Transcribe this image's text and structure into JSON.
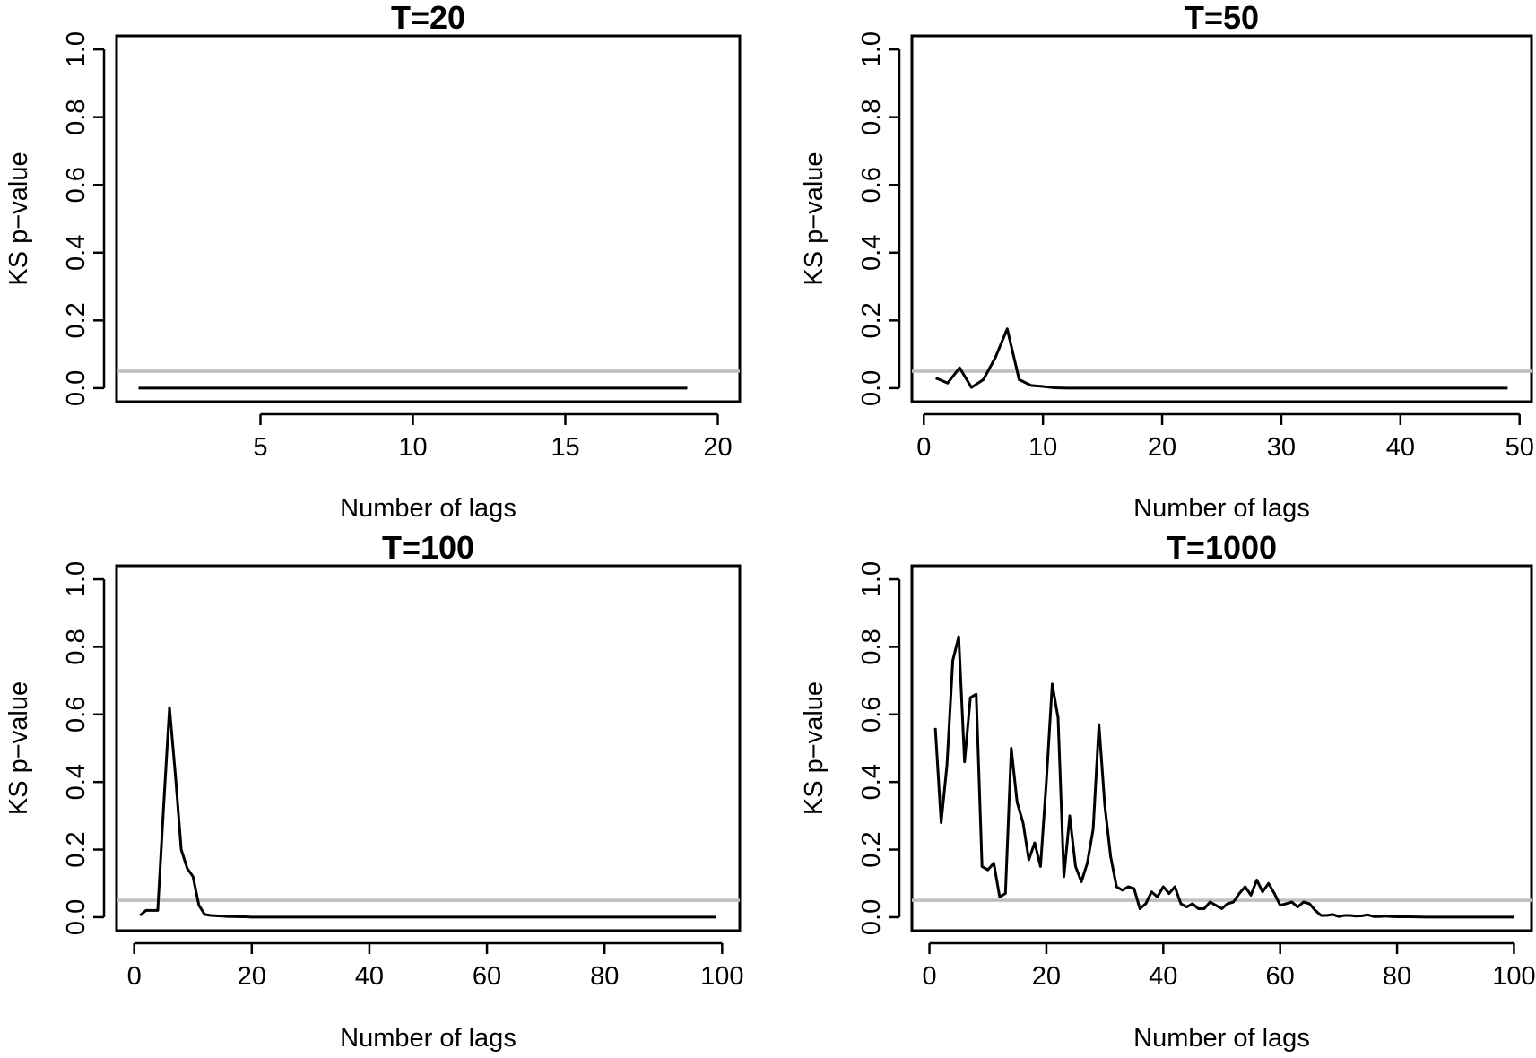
{
  "colors": {
    "series": "#000000",
    "reference_line": "#bebebe",
    "frame": "#000000"
  },
  "chart_data": [
    {
      "type": "line",
      "title": "T=20",
      "xlabel": "Number of lags",
      "ylabel": "KS p−value",
      "xlim": [
        0.28,
        20.72
      ],
      "ylim": [
        -0.04,
        1.04
      ],
      "xticks": [
        5,
        10,
        15,
        20
      ],
      "yticks": [
        0.0,
        0.2,
        0.4,
        0.6,
        0.8,
        1.0
      ],
      "ytick_labels": [
        "0.0",
        "0.2",
        "0.4",
        "0.6",
        "0.8",
        "1.0"
      ],
      "reference_line_y": 0.05,
      "grid": false,
      "x": [
        1,
        2,
        3,
        4,
        5,
        6,
        7,
        8,
        9,
        10,
        11,
        12,
        13,
        14,
        15,
        16,
        17,
        18,
        19
      ],
      "values": [
        0,
        0,
        0,
        0,
        0,
        0,
        0,
        0,
        0,
        0,
        0,
        0,
        0,
        0,
        0,
        0,
        0,
        0,
        0
      ]
    },
    {
      "type": "line",
      "title": "T=50",
      "xlabel": "Number of lags",
      "ylabel": "KS p−value",
      "xlim": [
        -1,
        51
      ],
      "ylim": [
        -0.04,
        1.04
      ],
      "xticks": [
        0,
        10,
        20,
        30,
        40,
        50
      ],
      "yticks": [
        0.0,
        0.2,
        0.4,
        0.6,
        0.8,
        1.0
      ],
      "ytick_labels": [
        "0.0",
        "0.2",
        "0.4",
        "0.6",
        "0.8",
        "1.0"
      ],
      "reference_line_y": 0.05,
      "grid": false,
      "x": [
        1,
        2,
        3,
        4,
        5,
        6,
        7,
        8,
        9,
        10,
        11,
        12,
        13,
        14,
        15,
        16,
        17,
        18,
        19,
        20,
        21,
        22,
        23,
        24,
        25,
        26,
        27,
        28,
        29,
        30,
        31,
        32,
        33,
        34,
        35,
        36,
        37,
        38,
        39,
        40,
        41,
        42,
        43,
        44,
        45,
        46,
        47,
        48,
        49
      ],
      "values": [
        0.03,
        0.015,
        0.06,
        0.002,
        0.025,
        0.09,
        0.175,
        0.025,
        0.008,
        0.005,
        0.001,
        0,
        0,
        0,
        0,
        0,
        0,
        0,
        0,
        0,
        0,
        0,
        0,
        0,
        0,
        0,
        0,
        0,
        0,
        0,
        0,
        0,
        0,
        0,
        0,
        0,
        0,
        0,
        0,
        0,
        0,
        0,
        0,
        0,
        0,
        0,
        0,
        0,
        0
      ]
    },
    {
      "type": "line",
      "title": "T=100",
      "xlabel": "Number of lags",
      "ylabel": "KS p−value",
      "xlim": [
        -3,
        103
      ],
      "ylim": [
        -0.04,
        1.04
      ],
      "xticks": [
        0,
        20,
        40,
        60,
        80,
        100
      ],
      "yticks": [
        0.0,
        0.2,
        0.4,
        0.6,
        0.8,
        1.0
      ],
      "ytick_labels": [
        "0.0",
        "0.2",
        "0.4",
        "0.6",
        "0.8",
        "1.0"
      ],
      "reference_line_y": 0.05,
      "grid": false,
      "x": [
        1,
        2,
        3,
        4,
        5,
        6,
        7,
        8,
        9,
        10,
        11,
        12,
        13,
        14,
        15,
        16,
        17,
        18,
        19,
        20,
        30,
        40,
        50,
        60,
        70,
        80,
        90,
        99
      ],
      "values": [
        0.005,
        0.02,
        0.02,
        0.02,
        0.33,
        0.62,
        0.42,
        0.2,
        0.145,
        0.12,
        0.035,
        0.008,
        0.005,
        0.004,
        0.003,
        0.002,
        0.002,
        0.001,
        0.001,
        0,
        0,
        0,
        0,
        0,
        0,
        0,
        0,
        0
      ]
    },
    {
      "type": "line",
      "title": "T=1000",
      "xlabel": "Number of lags",
      "ylabel": "KS p−value",
      "xlim": [
        -3,
        103
      ],
      "ylim": [
        -0.04,
        1.04
      ],
      "xticks": [
        0,
        20,
        40,
        60,
        80,
        100
      ],
      "yticks": [
        0.0,
        0.2,
        0.4,
        0.6,
        0.8,
        1.0
      ],
      "ytick_labels": [
        "0.0",
        "0.2",
        "0.4",
        "0.6",
        "0.8",
        "1.0"
      ],
      "reference_line_y": 0.05,
      "grid": false,
      "x": [
        1,
        2,
        3,
        4,
        5,
        6,
        7,
        8,
        9,
        10,
        11,
        12,
        13,
        14,
        15,
        16,
        17,
        18,
        19,
        20,
        21,
        22,
        23,
        24,
        25,
        26,
        27,
        28,
        29,
        30,
        31,
        32,
        33,
        34,
        35,
        36,
        37,
        38,
        39,
        40,
        41,
        42,
        43,
        44,
        45,
        46,
        47,
        48,
        49,
        50,
        51,
        52,
        53,
        54,
        55,
        56,
        57,
        58,
        59,
        60,
        61,
        62,
        63,
        64,
        65,
        66,
        67,
        68,
        69,
        70,
        71,
        72,
        73,
        74,
        75,
        76,
        77,
        78,
        79,
        80,
        82,
        85,
        90,
        95,
        100
      ],
      "values": [
        0.56,
        0.28,
        0.45,
        0.76,
        0.83,
        0.46,
        0.65,
        0.66,
        0.15,
        0.14,
        0.16,
        0.06,
        0.07,
        0.5,
        0.34,
        0.28,
        0.17,
        0.22,
        0.15,
        0.4,
        0.69,
        0.59,
        0.12,
        0.3,
        0.15,
        0.105,
        0.16,
        0.26,
        0.57,
        0.33,
        0.18,
        0.09,
        0.08,
        0.09,
        0.085,
        0.025,
        0.04,
        0.075,
        0.06,
        0.09,
        0.07,
        0.09,
        0.04,
        0.03,
        0.04,
        0.025,
        0.025,
        0.045,
        0.035,
        0.025,
        0.04,
        0.045,
        0.07,
        0.09,
        0.065,
        0.11,
        0.075,
        0.1,
        0.07,
        0.035,
        0.04,
        0.045,
        0.03,
        0.045,
        0.04,
        0.02,
        0.005,
        0.005,
        0.008,
        0.002,
        0.005,
        0.005,
        0.003,
        0.004,
        0.007,
        0.002,
        0.002,
        0.003,
        0.002,
        0.001,
        0.001,
        0,
        0,
        0,
        0
      ]
    }
  ]
}
